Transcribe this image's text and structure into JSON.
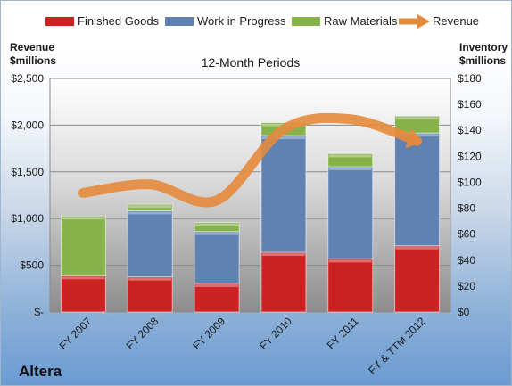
{
  "chart_data": {
    "type": "bar",
    "stacked": true,
    "title": "12-Month Periods",
    "ylabel_left": "Revenue\n$millions",
    "ylabel_right": "Inventory\n$millions",
    "categories": [
      "FY 2007",
      "FY 2008",
      "FY 2009",
      "FY 2010",
      "FY 2011",
      "FY & TTM 2012"
    ],
    "series": [
      {
        "name": "Finished Goods",
        "axis": "right",
        "color": "#cc2222",
        "values": [
          28,
          27,
          22,
          46,
          41,
          51
        ]
      },
      {
        "name": "Work in Progress",
        "axis": "right",
        "color": "#5f82b2",
        "values": [
          0,
          51,
          40,
          90,
          71,
          87
        ]
      },
      {
        "name": "Raw Materials",
        "axis": "right",
        "color": "#86b24a",
        "values": [
          46,
          5,
          7,
          10,
          10,
          13
        ]
      }
    ],
    "line_series": {
      "name": "Revenue",
      "axis": "left",
      "color": "#e48a3c",
      "values": [
        1275,
        1367,
        1195,
        1954,
        2064,
        1831
      ]
    },
    "left_axis": {
      "min": 0,
      "max": 2500,
      "ticks": [
        "$-",
        "$500",
        "$1,000",
        "$1,500",
        "$2,000",
        "$2,500"
      ]
    },
    "right_axis": {
      "min": 0,
      "max": 180,
      "ticks": [
        "$0",
        "$20",
        "$40",
        "$60",
        "$80",
        "$100",
        "$120",
        "$140",
        "$160",
        "$180"
      ]
    },
    "legend": {
      "placement": "top"
    },
    "grid": true
  },
  "brand": "Altera"
}
